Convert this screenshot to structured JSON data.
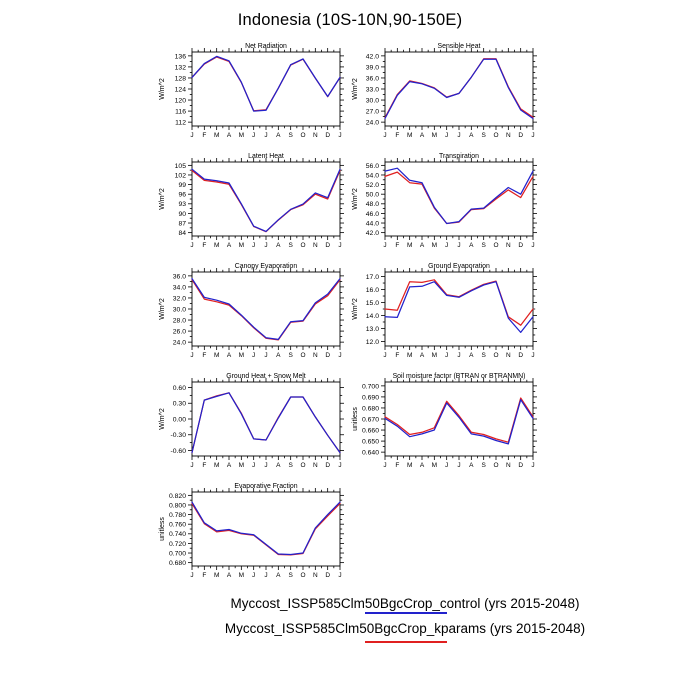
{
  "title": "Indonesia (10S-10N,90-150E)",
  "colors": {
    "control": "#2222cc",
    "kparams": "#e02020",
    "frame": "#000000",
    "background": "#ffffff"
  },
  "legend": {
    "entries": [
      {
        "label": "Myccost_ISSP585Clm50BgcCrop_control (yrs 2015-2048)",
        "color_key": "control"
      },
      {
        "label": "Myccost_ISSP585Clm50BgcCrop_kparams (yrs 2015-2048)",
        "color_key": "kparams"
      }
    ]
  },
  "chart_data": [
    {
      "type": "line",
      "title": "Net Radiation",
      "ylabel": "W/m^2",
      "categories": [
        "J",
        "F",
        "M",
        "A",
        "M",
        "J",
        "J",
        "A",
        "S",
        "O",
        "N",
        "D",
        "J"
      ],
      "ytick_labels": [
        "112",
        "116",
        "120",
        "124",
        "128",
        "132",
        "136"
      ],
      "ylim": [
        110.6,
        137.4
      ],
      "series": [
        {
          "name": "control",
          "color_key": "control",
          "values": [
            128.2,
            133.2,
            135.8,
            134.2,
            126.5,
            116.0,
            116.3,
            124.3,
            132.8,
            134.9,
            128.0,
            121.3,
            128.2
          ]
        },
        {
          "name": "kparams",
          "color_key": "kparams",
          "values": [
            128.2,
            133.0,
            135.6,
            134.0,
            126.4,
            116.1,
            116.5,
            124.3,
            132.7,
            134.8,
            127.9,
            121.2,
            128.2
          ]
        }
      ]
    },
    {
      "type": "line",
      "title": "Sensible Heat",
      "ylabel": "W/m^2",
      "categories": [
        "J",
        "F",
        "M",
        "A",
        "M",
        "J",
        "J",
        "A",
        "S",
        "O",
        "N",
        "D",
        "J"
      ],
      "ytick_labels": [
        "24.0",
        "27.0",
        "30.0",
        "33.0",
        "36.0",
        "39.0",
        "42.0"
      ],
      "ylim": [
        22.95,
        43.05
      ],
      "series": [
        {
          "name": "control",
          "color_key": "control",
          "values": [
            25.0,
            31.3,
            35.0,
            34.4,
            33.2,
            30.7,
            31.8,
            36.2,
            41.1,
            41.1,
            33.4,
            27.3,
            25.0
          ]
        },
        {
          "name": "kparams",
          "color_key": "kparams",
          "values": [
            25.2,
            31.5,
            35.2,
            34.5,
            33.3,
            30.8,
            31.8,
            36.2,
            41.2,
            41.2,
            33.6,
            27.6,
            25.3
          ]
        }
      ]
    },
    {
      "type": "line",
      "title": "Latent Heat",
      "ylabel": "W/m^2",
      "categories": [
        "J",
        "F",
        "M",
        "A",
        "M",
        "J",
        "J",
        "A",
        "S",
        "O",
        "N",
        "D",
        "J"
      ],
      "ytick_labels": [
        "84",
        "87",
        "90",
        "93",
        "96",
        "99",
        "102",
        "105"
      ],
      "ylim": [
        82.95,
        106.05
      ],
      "series": [
        {
          "name": "control",
          "color_key": "control",
          "values": [
            103.8,
            100.7,
            100.2,
            99.5,
            93.0,
            86.0,
            84.4,
            88.0,
            91.3,
            92.9,
            96.4,
            94.9,
            103.8
          ]
        },
        {
          "name": "kparams",
          "color_key": "kparams",
          "values": [
            103.4,
            100.3,
            99.8,
            99.1,
            92.8,
            85.9,
            84.3,
            87.9,
            91.2,
            92.7,
            96.0,
            94.5,
            103.4
          ]
        }
      ]
    },
    {
      "type": "line",
      "title": "Transpiration",
      "ylabel": "W/m^2",
      "categories": [
        "J",
        "F",
        "M",
        "A",
        "M",
        "J",
        "J",
        "A",
        "S",
        "O",
        "N",
        "D",
        "J"
      ],
      "ytick_labels": [
        "42.0",
        "44.0",
        "46.0",
        "48.0",
        "50.0",
        "52.0",
        "54.0",
        "56.0"
      ],
      "ylim": [
        41.3,
        56.7
      ],
      "series": [
        {
          "name": "control",
          "color_key": "control",
          "values": [
            54.8,
            55.4,
            52.9,
            52.4,
            47.3,
            43.9,
            44.3,
            46.9,
            47.1,
            49.3,
            51.4,
            50.0,
            54.8
          ]
        },
        {
          "name": "kparams",
          "color_key": "kparams",
          "values": [
            53.7,
            54.6,
            52.4,
            52.1,
            47.1,
            43.9,
            44.2,
            46.8,
            47.0,
            49.0,
            50.9,
            49.3,
            53.7
          ]
        }
      ]
    },
    {
      "type": "line",
      "title": "Canopy Evaporation",
      "ylabel": "W/m^2",
      "categories": [
        "J",
        "F",
        "M",
        "A",
        "M",
        "J",
        "J",
        "A",
        "S",
        "O",
        "N",
        "D",
        "J"
      ],
      "ytick_labels": [
        "24.0",
        "26.0",
        "28.0",
        "30.0",
        "32.0",
        "34.0",
        "36.0"
      ],
      "ylim": [
        23.3,
        36.7
      ],
      "series": [
        {
          "name": "control",
          "color_key": "control",
          "values": [
            35.5,
            32.1,
            31.6,
            30.9,
            28.9,
            26.7,
            24.8,
            24.5,
            27.7,
            27.9,
            31.1,
            32.7,
            35.5
          ]
        },
        {
          "name": "kparams",
          "color_key": "kparams",
          "values": [
            35.3,
            31.8,
            31.3,
            30.7,
            28.8,
            26.6,
            24.7,
            24.4,
            27.6,
            27.8,
            30.9,
            32.4,
            35.3
          ]
        }
      ]
    },
    {
      "type": "line",
      "title": "Ground Evaporation",
      "ylabel": "W/m^2",
      "categories": [
        "J",
        "F",
        "M",
        "A",
        "M",
        "J",
        "J",
        "A",
        "S",
        "O",
        "N",
        "D",
        "J"
      ],
      "ytick_labels": [
        "12.0",
        "13.0",
        "14.0",
        "15.0",
        "16.0",
        "17.0"
      ],
      "ylim": [
        11.65,
        17.35
      ],
      "series": [
        {
          "name": "control",
          "color_key": "control",
          "values": [
            13.9,
            13.85,
            16.2,
            16.25,
            16.6,
            15.55,
            15.4,
            15.9,
            16.35,
            16.6,
            13.8,
            12.7,
            13.9
          ]
        },
        {
          "name": "kparams",
          "color_key": "kparams",
          "values": [
            14.5,
            14.4,
            16.6,
            16.55,
            16.75,
            15.6,
            15.45,
            15.95,
            16.4,
            16.65,
            13.9,
            13.25,
            14.5
          ]
        }
      ]
    },
    {
      "type": "line",
      "title": "Ground Heat + Snow Melt",
      "ylabel": "W/m^2",
      "categories": [
        "J",
        "F",
        "M",
        "A",
        "M",
        "J",
        "J",
        "A",
        "S",
        "O",
        "N",
        "D",
        "J"
      ],
      "ytick_labels": [
        "-0.60",
        "-0.30",
        "0.00",
        "0.30",
        "0.60"
      ],
      "ylim": [
        -0.705,
        0.705
      ],
      "series": [
        {
          "name": "control",
          "color_key": "control",
          "values": [
            -0.64,
            0.36,
            0.43,
            0.5,
            0.1,
            -0.38,
            -0.4,
            0.02,
            0.42,
            0.42,
            0.04,
            -0.31,
            -0.64
          ]
        },
        {
          "name": "kparams",
          "color_key": "kparams",
          "values": [
            -0.64,
            0.36,
            0.44,
            0.5,
            0.11,
            -0.38,
            -0.4,
            0.03,
            0.42,
            0.42,
            0.04,
            -0.31,
            -0.64
          ]
        }
      ]
    },
    {
      "type": "line",
      "title": "Soil moisture factor (BTRAN or BTRANMN)",
      "ylabel": "unitless",
      "categories": [
        "J",
        "F",
        "M",
        "A",
        "M",
        "J",
        "J",
        "A",
        "S",
        "O",
        "N",
        "D",
        "J"
      ],
      "ytick_labels": [
        "0.640",
        "0.650",
        "0.660",
        "0.670",
        "0.680",
        "0.690",
        "0.700"
      ],
      "ylim": [
        0.6365,
        0.7035
      ],
      "series": [
        {
          "name": "control",
          "color_key": "control",
          "values": [
            0.6705,
            0.6635,
            0.654,
            0.6565,
            0.66,
            0.6845,
            0.6715,
            0.6565,
            0.6545,
            0.6505,
            0.6475,
            0.6875,
            0.6705
          ]
        },
        {
          "name": "kparams",
          "color_key": "kparams",
          "values": [
            0.672,
            0.665,
            0.656,
            0.658,
            0.662,
            0.686,
            0.673,
            0.658,
            0.656,
            0.652,
            0.649,
            0.689,
            0.672
          ]
        }
      ]
    },
    {
      "type": "line",
      "title": "Evaporative Fraction",
      "ylabel": "unitless",
      "categories": [
        "J",
        "F",
        "M",
        "A",
        "M",
        "J",
        "J",
        "A",
        "S",
        "O",
        "N",
        "D",
        "J"
      ],
      "ytick_labels": [
        "0.680",
        "0.700",
        "0.720",
        "0.740",
        "0.760",
        "0.780",
        "0.800",
        "0.820"
      ],
      "ylim": [
        0.673,
        0.827
      ],
      "series": [
        {
          "name": "control",
          "color_key": "control",
          "values": [
            0.806,
            0.763,
            0.746,
            0.749,
            0.741,
            0.738,
            0.718,
            0.698,
            0.697,
            0.7,
            0.752,
            0.78,
            0.806
          ]
        },
        {
          "name": "kparams",
          "color_key": "kparams",
          "values": [
            0.803,
            0.761,
            0.744,
            0.747,
            0.74,
            0.737,
            0.717,
            0.697,
            0.696,
            0.699,
            0.75,
            0.777,
            0.803
          ]
        }
      ]
    }
  ]
}
